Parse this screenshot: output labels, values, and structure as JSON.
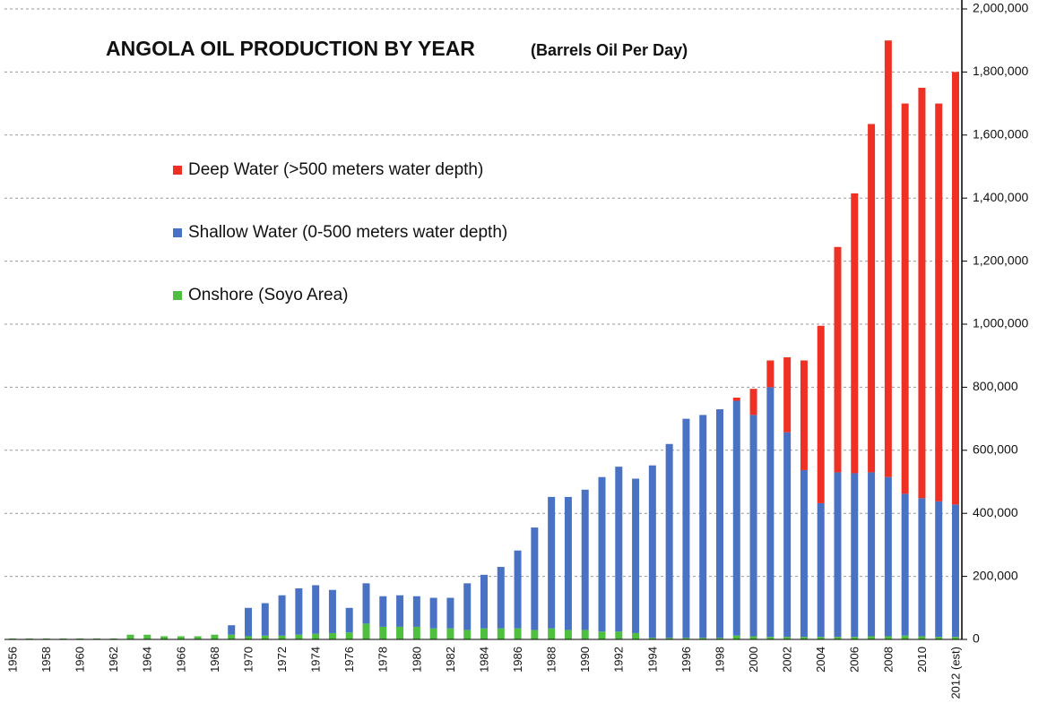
{
  "chart_data": {
    "type": "stacked_bar",
    "title": "ANGOLA OIL PRODUCTION BY YEAR",
    "subtitle": "(Barrels Oil Per Day)",
    "categories": [
      "1956",
      null,
      "1958",
      null,
      "1960",
      null,
      "1962",
      null,
      "1964",
      null,
      "1966",
      null,
      "1968",
      null,
      "1970",
      null,
      "1972",
      null,
      "1974",
      null,
      "1976",
      null,
      "1978",
      null,
      "1980",
      null,
      "1982",
      null,
      "1984",
      null,
      "1986",
      null,
      "1988",
      null,
      "1990",
      null,
      "1992",
      null,
      "1994",
      null,
      "1996",
      null,
      "1998",
      null,
      "2000",
      null,
      "2002",
      null,
      "2004",
      null,
      "2006",
      null,
      "2008",
      null,
      "2010",
      null,
      "2012 (est)"
    ],
    "series": [
      {
        "name": "Deep Water (>500 meters water depth)",
        "color": "#ee3124",
        "values": [
          0,
          0,
          0,
          0,
          0,
          0,
          0,
          0,
          0,
          0,
          0,
          0,
          0,
          0,
          0,
          0,
          0,
          0,
          0,
          0,
          0,
          0,
          0,
          0,
          0,
          0,
          0,
          0,
          0,
          0,
          0,
          0,
          0,
          0,
          0,
          0,
          0,
          0,
          0,
          0,
          0,
          0,
          0,
          10000,
          83000,
          85000,
          238000,
          348000,
          563000,
          715000,
          888000,
          1105000,
          1385000,
          1238000,
          1302000,
          1262000,
          1372000
        ]
      },
      {
        "name": "Shallow Water (0-500 meters water depth)",
        "color": "#4a72c4",
        "values": [
          0,
          0,
          0,
          0,
          0,
          0,
          0,
          0,
          0,
          0,
          0,
          0,
          0,
          30000,
          90000,
          103000,
          128000,
          147000,
          154000,
          137000,
          78000,
          128000,
          97000,
          100000,
          97000,
          97000,
          97000,
          148000,
          170000,
          195000,
          247000,
          325000,
          417000,
          422000,
          445000,
          490000,
          523000,
          490000,
          547000,
          615000,
          695000,
          707000,
          725000,
          745000,
          702000,
          792000,
          649000,
          529000,
          424000,
          522000,
          519000,
          520000,
          505000,
          450000,
          438000,
          430000,
          420000
        ]
      },
      {
        "name": "Onshore (Soyo Area)",
        "color": "#4fbf3f",
        "values": [
          3000,
          3000,
          3000,
          3000,
          3000,
          3000,
          3000,
          15000,
          15000,
          10000,
          10000,
          10000,
          15000,
          15000,
          10000,
          12000,
          12000,
          15000,
          18000,
          20000,
          22000,
          50000,
          40000,
          40000,
          40000,
          35000,
          35000,
          30000,
          35000,
          35000,
          35000,
          30000,
          35000,
          30000,
          30000,
          25000,
          25000,
          20000,
          5000,
          5000,
          5000,
          5000,
          5000,
          12000,
          10000,
          8000,
          8000,
          8000,
          8000,
          8000,
          8000,
          10000,
          10000,
          12000,
          10000,
          8000,
          8000
        ]
      }
    ],
    "stack_order": [
      "Onshore (Soyo Area)",
      "Shallow Water (0-500 meters water depth)",
      "Deep Water (>500 meters water depth)"
    ],
    "ylim": [
      0,
      2000000
    ],
    "yticks": [
      0,
      {
        "value": 200000,
        "label": "200,000"
      },
      {
        "value": 400000,
        "label": "400,000"
      },
      {
        "value": 600000,
        "label": "600,000"
      },
      {
        "value": 800000,
        "label": "800,000"
      },
      {
        "value": 1000000,
        "label": "1,000,000"
      },
      {
        "value": 1200000,
        "label": "1,200,000"
      },
      {
        "value": 1400000,
        "label": "1,400,000"
      },
      {
        "value": 1600000,
        "label": "1,600,000"
      },
      {
        "value": 1800000,
        "label": "1,800,000"
      },
      {
        "value": 2000000,
        "label": "2,000,000"
      }
    ],
    "y_axis_side": "right",
    "grid": true
  }
}
